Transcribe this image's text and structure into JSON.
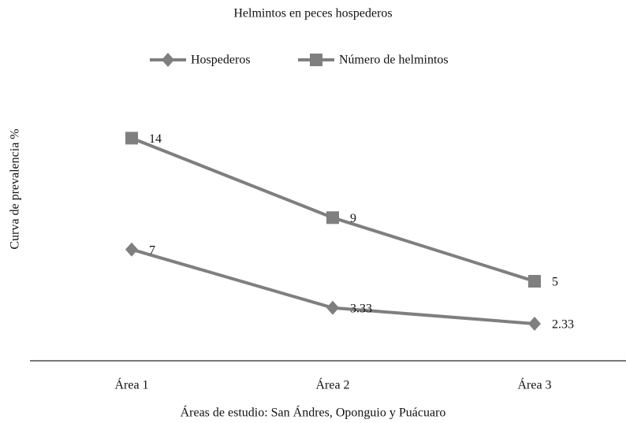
{
  "chart_data": {
    "type": "line",
    "title": "Helmintos en peces hospederos",
    "x_label": "Áreas de estudio: San Ándres, Oponguio y Puácuaro",
    "y_label": "Curva de prevalencia %",
    "categories": [
      "Área 1",
      "Área 2",
      "Área 3"
    ],
    "series": [
      {
        "name": "Hospederos",
        "color": "#7f7f7f",
        "marker": "diamond",
        "values": [
          7,
          3.33,
          2.33
        ]
      },
      {
        "name": "Número de helmintos",
        "color": "#7f7f7f",
        "marker": "square",
        "values": [
          14,
          9,
          5
        ]
      }
    ],
    "ylim": [
      0,
      16
    ],
    "legend": "top"
  }
}
